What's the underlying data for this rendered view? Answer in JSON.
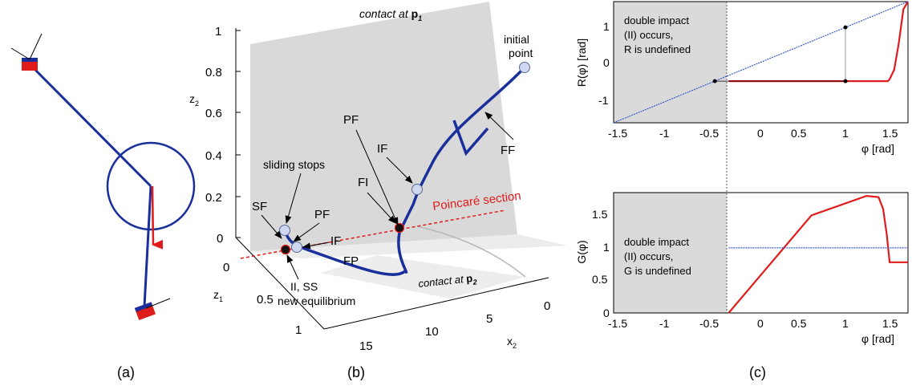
{
  "panels": {
    "a": {
      "label": "(a)"
    },
    "b": {
      "label": "(b)",
      "plane_top": "contact at ",
      "plane_top_sym": "p",
      "plane_top_sub": "1",
      "plane_bottom": "contact at ",
      "plane_bottom_sym": "p",
      "plane_bottom_sub": "2",
      "z2_label": "z",
      "z2_sub": "2",
      "z1_label": "z",
      "z1_sub": "1",
      "x2_label": "x",
      "x2_sub": "2",
      "z2_ticks": [
        "0",
        "0.2",
        "0.4",
        "0.6",
        "0.8",
        "1"
      ],
      "z1_ticks": [
        "0",
        "0.5",
        "1"
      ],
      "x2_ticks": [
        "15",
        "10",
        "5",
        "0"
      ],
      "annotations": {
        "initial_point": [
          "initial",
          "point"
        ],
        "ff": "FF",
        "pf_right": "PF",
        "if_right": "IF",
        "fi": "FI",
        "fp": "FP",
        "sliding_stops": "sliding stops",
        "sf": "SF",
        "pf_left": "PF",
        "if_left": "IF",
        "ii_ss": "II, SS",
        "new_eq": "new equilibrium",
        "poincare": "Poincaré section"
      }
    },
    "c": {
      "label": "(c)",
      "top": {
        "ylabel": "R(φ) [rad]",
        "xlabel": "φ [rad]",
        "note": [
          "double impact",
          "(II) occurs,",
          "R is undefined"
        ],
        "yticks": [
          "1",
          "0",
          "-1"
        ],
        "xticks": [
          "-1.5",
          "-1",
          "-0.5",
          "0",
          "0.5",
          "1",
          "1.5"
        ]
      },
      "bottom": {
        "ylabel": "G(φ)",
        "xlabel": "φ [rad]",
        "note": [
          "double impact",
          "(II) occurs,",
          "G is undefined"
        ],
        "yticks": [
          "1.5",
          "1",
          "0.5",
          "0"
        ],
        "xticks": [
          "-1.5",
          "-1",
          "-0.5",
          "0",
          "0.5",
          "1",
          "1.5"
        ]
      }
    }
  },
  "colors": {
    "trajectory": "#1a2f9c",
    "red": "#e01b1b",
    "plane": "#d9d9d9",
    "shade": "#dadada",
    "dotted_line": "#3a5bc7"
  },
  "chart_data": [
    {
      "type": "line",
      "title": "",
      "xlabel": "φ [rad]",
      "ylabel": "R(φ) [rad]",
      "xlim": [
        -1.6,
        1.6
      ],
      "ylim": [
        -1.6,
        1.6
      ],
      "shaded_x": [
        -1.6,
        -0.35
      ],
      "series": [
        {
          "x": [
            -0.35,
            1.38,
            1.4,
            1.45,
            1.5,
            1.55,
            1.6
          ],
          "y": [
            -0.5,
            -0.5,
            -0.45,
            -0.2,
            0.5,
            1.4,
            1.6
          ]
        },
        {
          "x": [
            -1.6,
            1.6
          ],
          "y": [
            -1.6,
            1.6
          ]
        }
      ],
      "markers": [
        {
          "x": -0.5,
          "y": -0.5
        },
        {
          "x": 0.92,
          "y": 0.92
        },
        {
          "x": 0.92,
          "y": -0.5
        }
      ]
    },
    {
      "type": "line",
      "title": "",
      "xlabel": "φ [rad]",
      "ylabel": "G(φ)",
      "xlim": [
        -1.6,
        1.6
      ],
      "ylim": [
        0,
        1.85
      ],
      "shaded_x": [
        -1.6,
        -0.35
      ],
      "series": [
        {
          "x": [
            -0.35,
            0.55,
            1.15,
            1.28,
            1.33,
            1.37,
            1.4,
            1.43,
            1.6
          ],
          "y": [
            0.0,
            1.5,
            1.8,
            1.78,
            1.6,
            1.2,
            0.78,
            0.78,
            0.78
          ]
        },
        {
          "x": [
            -0.35,
            1.6
          ],
          "y": [
            1.0,
            1.0
          ]
        }
      ]
    }
  ]
}
